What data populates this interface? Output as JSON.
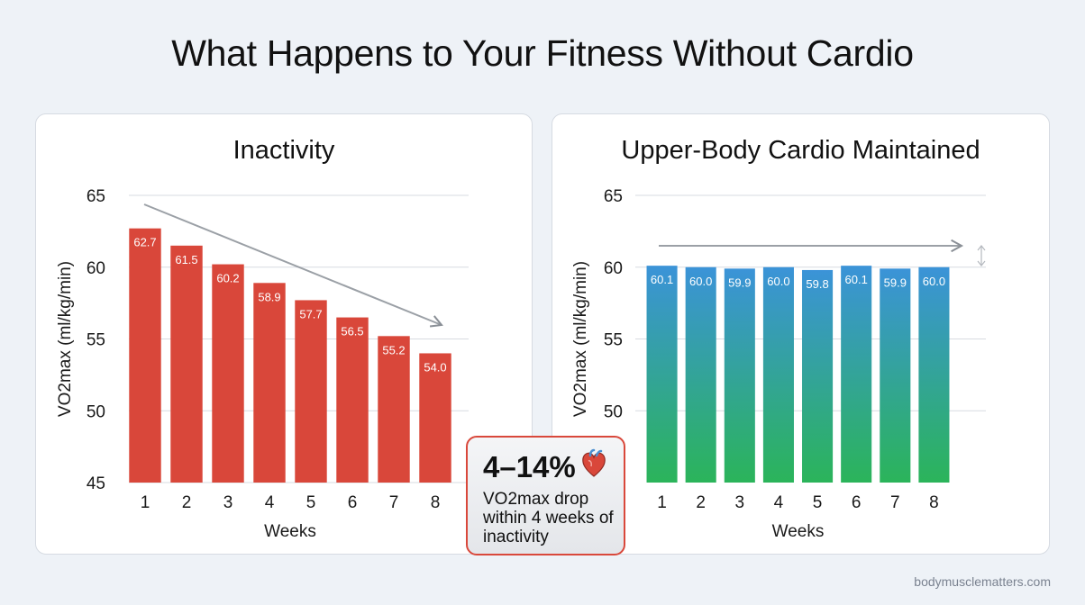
{
  "title": "What Happens to Your Fitness Without Cardio",
  "chart_data": [
    {
      "type": "bar",
      "title": "Inactivity",
      "xlabel": "Weeks",
      "ylabel": "VO2max (ml/kg/min)",
      "ylim": [
        45,
        65
      ],
      "yticks": [
        65,
        60,
        55,
        50,
        45
      ],
      "categories": [
        "1",
        "2",
        "3",
        "4",
        "5",
        "6",
        "7",
        "8"
      ],
      "values": [
        62.7,
        61.5,
        60.2,
        58.9,
        57.7,
        56.5,
        55.2,
        54.0
      ],
      "value_labels": [
        "62.7",
        "61.5",
        "60.2",
        "58.9",
        "57.7",
        "56.5",
        "55.2",
        "54.0"
      ],
      "bar_color": "#d9473a",
      "trend": "declining arrow",
      "grid": true
    },
    {
      "type": "bar",
      "title": "Upper-Body Cardio Maintained",
      "xlabel": "Weeks",
      "ylabel": "VO2max (ml/kg/min)",
      "ylim": [
        45,
        65
      ],
      "yticks": [
        65,
        60,
        55,
        50
      ],
      "categories": [
        "1",
        "2",
        "3",
        "4",
        "5",
        "6",
        "7",
        "8"
      ],
      "values": [
        60.1,
        60.0,
        59.9,
        60.0,
        59.8,
        60.1,
        59.9,
        60.0
      ],
      "value_labels": [
        "60.1",
        "60.0",
        "59.9",
        "60.0",
        "59.8",
        "60.1",
        "59.9",
        "60.0"
      ],
      "bar_color_top": "#3b93d8",
      "bar_color_bottom": "#2bb45a",
      "trend": "flat arrow",
      "grid": true
    }
  ],
  "callout": {
    "headline": "4–14%",
    "text": "VO2max drop within 4 weeks of inactivity",
    "icon": "heart-icon",
    "border_color": "#d9483b"
  },
  "footer": "bodymusclematters.com"
}
